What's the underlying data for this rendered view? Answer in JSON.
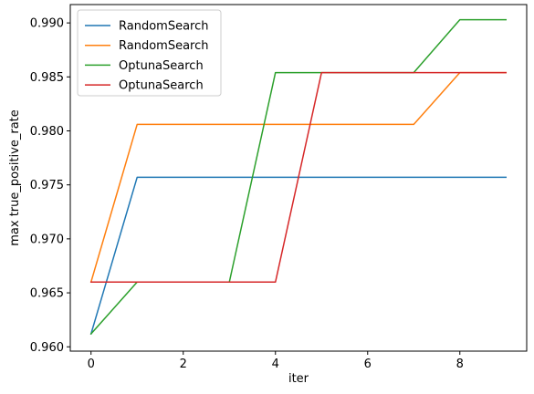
{
  "chart_data": {
    "type": "line",
    "title": "",
    "xlabel": "iter",
    "ylabel": "max true_positive_rate",
    "xlim": [
      -0.45,
      9.45
    ],
    "ylim": [
      0.9596,
      0.9917
    ],
    "xticks": [
      0,
      2,
      4,
      6,
      8
    ],
    "xtick_labels": [
      "0",
      "2",
      "4",
      "6",
      "8"
    ],
    "yticks": [
      0.96,
      0.965,
      0.97,
      0.975,
      0.98,
      0.985,
      0.99
    ],
    "ytick_labels": [
      "0.960",
      "0.965",
      "0.970",
      "0.975",
      "0.980",
      "0.985",
      "0.990"
    ],
    "grid": false,
    "legend_position": "top-left",
    "x": [
      0,
      1,
      2,
      3,
      4,
      5,
      6,
      7,
      8,
      9
    ],
    "series": [
      {
        "name": "RandomSearch",
        "color": "#1f77b4",
        "values": [
          0.9612,
          0.9757,
          0.9757,
          0.9757,
          0.9757,
          0.9757,
          0.9757,
          0.9757,
          0.9757,
          0.9757
        ]
      },
      {
        "name": "RandomSearch",
        "color": "#ff7f0e",
        "values": [
          0.966,
          0.9806,
          0.9806,
          0.9806,
          0.9806,
          0.9806,
          0.9806,
          0.9806,
          0.9854,
          0.9854
        ]
      },
      {
        "name": "OptunaSearch",
        "color": "#2ca02c",
        "values": [
          0.9612,
          0.966,
          0.966,
          0.966,
          0.9854,
          0.9854,
          0.9854,
          0.9854,
          0.9903,
          0.9903
        ]
      },
      {
        "name": "OptunaSearch",
        "color": "#d62728",
        "values": [
          0.966,
          0.966,
          0.966,
          0.966,
          0.966,
          0.9854,
          0.9854,
          0.9854,
          0.9854,
          0.9854
        ]
      }
    ]
  }
}
